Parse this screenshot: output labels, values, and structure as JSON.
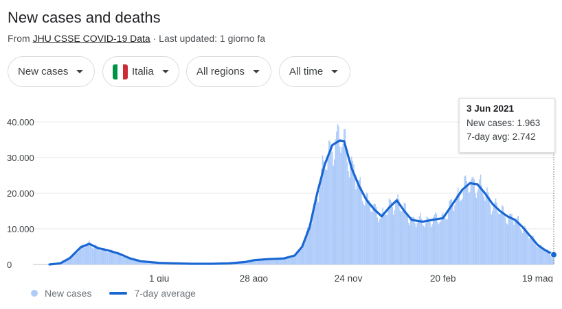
{
  "header": {
    "title": "New cases and deaths",
    "source_prefix": "From",
    "source_link": "JHU CSSE COVID-19 Data",
    "updated": "· Last updated: 1 giorno fa"
  },
  "filters": {
    "metric": "New cases",
    "country": "Italia",
    "regions": "All regions",
    "time": "All time"
  },
  "colors": {
    "bars": "#aecbfa",
    "line": "#1967d2",
    "flag_green": "#009246",
    "flag_white": "#ffffff",
    "flag_red": "#ce2b37"
  },
  "tooltip": {
    "date": "3 Jun 2021",
    "cases_label": "New cases: 1.963",
    "avg_label": "7-day avg: 2.742"
  },
  "legend": {
    "bars": "New cases",
    "line": "7-day average"
  },
  "chart_data": {
    "type": "bar",
    "title": "New cases and deaths",
    "xlabel": "",
    "ylabel": "",
    "ylim": [
      0,
      42000
    ],
    "yticks": [
      0,
      10000,
      20000,
      30000,
      40000
    ],
    "ytick_labels": [
      "0",
      "10.000",
      "20.000",
      "30.000",
      "40.000"
    ],
    "xlim": [
      "2020-02-20",
      "2021-06-03"
    ],
    "xticks": [
      "2020-06-01",
      "2020-08-28",
      "2020-11-24",
      "2021-02-20",
      "2021-05-19"
    ],
    "xtick_labels": [
      "1 giu",
      "28 ago",
      "24 nov",
      "20 feb",
      "19 mag"
    ],
    "grid": true,
    "legend_position": "bottom-left",
    "series": [
      {
        "name": "7-day average",
        "type": "line",
        "points": [
          [
            "2020-02-20",
            0
          ],
          [
            "2020-03-01",
            300
          ],
          [
            "2020-03-10",
            1800
          ],
          [
            "2020-03-20",
            4800
          ],
          [
            "2020-03-28",
            5800
          ],
          [
            "2020-04-05",
            4600
          ],
          [
            "2020-04-15",
            3900
          ],
          [
            "2020-04-25",
            3000
          ],
          [
            "2020-05-05",
            1700
          ],
          [
            "2020-05-15",
            900
          ],
          [
            "2020-06-01",
            450
          ],
          [
            "2020-06-15",
            300
          ],
          [
            "2020-07-01",
            200
          ],
          [
            "2020-07-20",
            200
          ],
          [
            "2020-08-05",
            300
          ],
          [
            "2020-08-20",
            700
          ],
          [
            "2020-08-28",
            1200
          ],
          [
            "2020-09-10",
            1500
          ],
          [
            "2020-09-25",
            1700
          ],
          [
            "2020-10-05",
            2500
          ],
          [
            "2020-10-12",
            5000
          ],
          [
            "2020-10-19",
            10500
          ],
          [
            "2020-10-26",
            20000
          ],
          [
            "2020-11-02",
            28000
          ],
          [
            "2020-11-09",
            33500
          ],
          [
            "2020-11-16",
            34800
          ],
          [
            "2020-11-20",
            34600
          ],
          [
            "2020-11-27",
            27000
          ],
          [
            "2020-12-04",
            22000
          ],
          [
            "2020-12-11",
            18000
          ],
          [
            "2020-12-18",
            15500
          ],
          [
            "2020-12-25",
            13500
          ],
          [
            "2021-01-01",
            16000
          ],
          [
            "2021-01-08",
            18000
          ],
          [
            "2021-01-15",
            15000
          ],
          [
            "2021-01-22",
            12500
          ],
          [
            "2021-02-01",
            12000
          ],
          [
            "2021-02-10",
            12500
          ],
          [
            "2021-02-20",
            13000
          ],
          [
            "2021-03-01",
            17000
          ],
          [
            "2021-03-10",
            21000
          ],
          [
            "2021-03-17",
            22800
          ],
          [
            "2021-03-24",
            22500
          ],
          [
            "2021-03-31",
            20000
          ],
          [
            "2021-04-07",
            17000
          ],
          [
            "2021-04-14",
            15000
          ],
          [
            "2021-04-21",
            13500
          ],
          [
            "2021-04-28",
            12500
          ],
          [
            "2021-05-05",
            10500
          ],
          [
            "2021-05-12",
            8000
          ],
          [
            "2021-05-19",
            5500
          ],
          [
            "2021-05-26",
            4000
          ],
          [
            "2021-06-03",
            2742
          ]
        ]
      },
      {
        "name": "New cases",
        "type": "bar",
        "approximation": "daily values ≈ 7-day average with weekly oscillation",
        "last_value": [
          "2021-06-03",
          1963
        ]
      }
    ],
    "highlight": {
      "x": "2021-06-03",
      "new_cases": 1963,
      "avg": 2742
    }
  }
}
